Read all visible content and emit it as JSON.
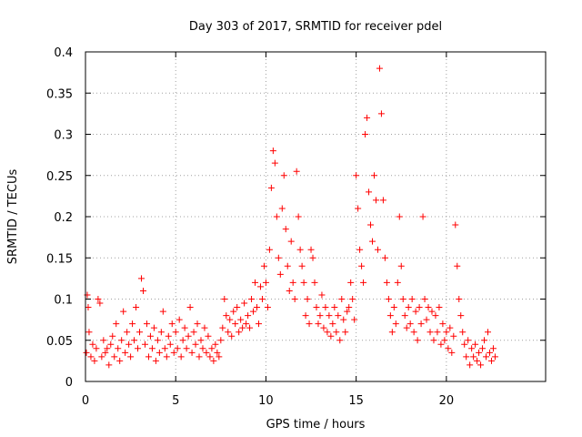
{
  "chart_data": {
    "type": "scatter",
    "title": "Day 303 of 2017, SRMTID for receiver pdel",
    "xlabel": "GPS time / hours",
    "ylabel": "SRMTID / TECUs",
    "xlim": [
      0,
      25.5
    ],
    "ylim": [
      0,
      0.4
    ],
    "x_ticks": [
      0,
      5,
      10,
      15,
      20
    ],
    "x_tick_labels": [
      "0",
      "5",
      "10",
      "15",
      "20"
    ],
    "y_ticks": [
      0,
      0.05,
      0.1,
      0.15,
      0.2,
      0.25,
      0.3,
      0.35,
      0.4
    ],
    "y_tick_labels": [
      "0",
      "0.05",
      "0.1",
      "0.15",
      "0.2",
      "0.25",
      "0.3",
      "0.35",
      "0.4"
    ],
    "grid": true,
    "marker": "plus",
    "color": "#ff0000",
    "series": [
      {
        "name": "SRMTID",
        "points": [
          [
            0.05,
            0.035
          ],
          [
            0.1,
            0.105
          ],
          [
            0.15,
            0.09
          ],
          [
            0.2,
            0.06
          ],
          [
            0.3,
            0.03
          ],
          [
            0.4,
            0.045
          ],
          [
            0.5,
            0.025
          ],
          [
            0.6,
            0.04
          ],
          [
            0.7,
            0.1
          ],
          [
            0.8,
            0.095
          ],
          [
            0.9,
            0.03
          ],
          [
            1.0,
            0.05
          ],
          [
            1.1,
            0.035
          ],
          [
            1.2,
            0.04
          ],
          [
            1.3,
            0.02
          ],
          [
            1.4,
            0.045
          ],
          [
            1.5,
            0.055
          ],
          [
            1.6,
            0.03
          ],
          [
            1.7,
            0.07
          ],
          [
            1.8,
            0.04
          ],
          [
            1.9,
            0.025
          ],
          [
            2.0,
            0.05
          ],
          [
            2.1,
            0.085
          ],
          [
            2.2,
            0.035
          ],
          [
            2.3,
            0.06
          ],
          [
            2.4,
            0.045
          ],
          [
            2.5,
            0.03
          ],
          [
            2.6,
            0.07
          ],
          [
            2.7,
            0.05
          ],
          [
            2.8,
            0.09
          ],
          [
            2.9,
            0.04
          ],
          [
            3.0,
            0.06
          ],
          [
            3.1,
            0.125
          ],
          [
            3.2,
            0.11
          ],
          [
            3.3,
            0.045
          ],
          [
            3.4,
            0.07
          ],
          [
            3.5,
            0.03
          ],
          [
            3.6,
            0.055
          ],
          [
            3.7,
            0.04
          ],
          [
            3.8,
            0.065
          ],
          [
            3.9,
            0.025
          ],
          [
            4.0,
            0.05
          ],
          [
            4.1,
            0.035
          ],
          [
            4.2,
            0.06
          ],
          [
            4.3,
            0.085
          ],
          [
            4.4,
            0.04
          ],
          [
            4.5,
            0.03
          ],
          [
            4.6,
            0.055
          ],
          [
            4.7,
            0.045
          ],
          [
            4.8,
            0.07
          ],
          [
            4.9,
            0.035
          ],
          [
            5.0,
            0.06
          ],
          [
            5.1,
            0.04
          ],
          [
            5.2,
            0.075
          ],
          [
            5.3,
            0.03
          ],
          [
            5.4,
            0.05
          ],
          [
            5.5,
            0.065
          ],
          [
            5.6,
            0.04
          ],
          [
            5.7,
            0.055
          ],
          [
            5.8,
            0.09
          ],
          [
            5.9,
            0.035
          ],
          [
            6.0,
            0.06
          ],
          [
            6.1,
            0.045
          ],
          [
            6.2,
            0.07
          ],
          [
            6.3,
            0.03
          ],
          [
            6.4,
            0.05
          ],
          [
            6.5,
            0.04
          ],
          [
            6.6,
            0.065
          ],
          [
            6.7,
            0.035
          ],
          [
            6.8,
            0.055
          ],
          [
            6.9,
            0.03
          ],
          [
            7.0,
            0.04
          ],
          [
            7.1,
            0.025
          ],
          [
            7.2,
            0.045
          ],
          [
            7.3,
            0.035
          ],
          [
            7.4,
            0.03
          ],
          [
            7.5,
            0.05
          ],
          [
            7.6,
            0.065
          ],
          [
            7.7,
            0.1
          ],
          [
            7.8,
            0.08
          ],
          [
            7.9,
            0.06
          ],
          [
            8.0,
            0.075
          ],
          [
            8.1,
            0.055
          ],
          [
            8.2,
            0.085
          ],
          [
            8.3,
            0.07
          ],
          [
            8.4,
            0.09
          ],
          [
            8.5,
            0.06
          ],
          [
            8.6,
            0.075
          ],
          [
            8.7,
            0.065
          ],
          [
            8.8,
            0.095
          ],
          [
            8.9,
            0.07
          ],
          [
            9.0,
            0.08
          ],
          [
            9.1,
            0.065
          ],
          [
            9.2,
            0.1
          ],
          [
            9.3,
            0.085
          ],
          [
            9.4,
            0.12
          ],
          [
            9.5,
            0.09
          ],
          [
            9.6,
            0.07
          ],
          [
            9.7,
            0.115
          ],
          [
            9.8,
            0.1
          ],
          [
            9.9,
            0.14
          ],
          [
            10.0,
            0.12
          ],
          [
            10.1,
            0.09
          ],
          [
            10.2,
            0.16
          ],
          [
            10.3,
            0.235
          ],
          [
            10.4,
            0.28
          ],
          [
            10.5,
            0.265
          ],
          [
            10.6,
            0.2
          ],
          [
            10.7,
            0.15
          ],
          [
            10.8,
            0.13
          ],
          [
            10.9,
            0.21
          ],
          [
            11.0,
            0.25
          ],
          [
            11.1,
            0.185
          ],
          [
            11.2,
            0.14
          ],
          [
            11.3,
            0.11
          ],
          [
            11.4,
            0.17
          ],
          [
            11.5,
            0.12
          ],
          [
            11.6,
            0.1
          ],
          [
            11.7,
            0.255
          ],
          [
            11.8,
            0.2
          ],
          [
            11.9,
            0.16
          ],
          [
            12.0,
            0.14
          ],
          [
            12.1,
            0.12
          ],
          [
            12.2,
            0.08
          ],
          [
            12.3,
            0.1
          ],
          [
            12.4,
            0.07
          ],
          [
            12.5,
            0.16
          ],
          [
            12.6,
            0.15
          ],
          [
            12.7,
            0.12
          ],
          [
            12.8,
            0.09
          ],
          [
            12.9,
            0.07
          ],
          [
            13.0,
            0.08
          ],
          [
            13.1,
            0.105
          ],
          [
            13.2,
            0.065
          ],
          [
            13.3,
            0.09
          ],
          [
            13.4,
            0.06
          ],
          [
            13.5,
            0.08
          ],
          [
            13.6,
            0.055
          ],
          [
            13.7,
            0.07
          ],
          [
            13.8,
            0.09
          ],
          [
            13.9,
            0.06
          ],
          [
            14.0,
            0.08
          ],
          [
            14.1,
            0.05
          ],
          [
            14.2,
            0.1
          ],
          [
            14.3,
            0.075
          ],
          [
            14.4,
            0.06
          ],
          [
            14.5,
            0.085
          ],
          [
            14.6,
            0.09
          ],
          [
            14.7,
            0.12
          ],
          [
            14.8,
            0.1
          ],
          [
            14.9,
            0.075
          ],
          [
            15.0,
            0.25
          ],
          [
            15.1,
            0.21
          ],
          [
            15.2,
            0.16
          ],
          [
            15.3,
            0.14
          ],
          [
            15.4,
            0.12
          ],
          [
            15.5,
            0.3
          ],
          [
            15.6,
            0.32
          ],
          [
            15.7,
            0.23
          ],
          [
            15.8,
            0.19
          ],
          [
            15.9,
            0.17
          ],
          [
            16.0,
            0.25
          ],
          [
            16.1,
            0.22
          ],
          [
            16.2,
            0.16
          ],
          [
            16.3,
            0.38
          ],
          [
            16.4,
            0.325
          ],
          [
            16.5,
            0.22
          ],
          [
            16.6,
            0.15
          ],
          [
            16.7,
            0.12
          ],
          [
            16.8,
            0.1
          ],
          [
            16.9,
            0.08
          ],
          [
            17.0,
            0.06
          ],
          [
            17.1,
            0.09
          ],
          [
            17.2,
            0.07
          ],
          [
            17.3,
            0.12
          ],
          [
            17.4,
            0.2
          ],
          [
            17.5,
            0.14
          ],
          [
            17.6,
            0.1
          ],
          [
            17.7,
            0.08
          ],
          [
            17.8,
            0.065
          ],
          [
            17.9,
            0.09
          ],
          [
            18.0,
            0.07
          ],
          [
            18.1,
            0.1
          ],
          [
            18.2,
            0.06
          ],
          [
            18.3,
            0.085
          ],
          [
            18.4,
            0.05
          ],
          [
            18.5,
            0.09
          ],
          [
            18.6,
            0.07
          ],
          [
            18.7,
            0.2
          ],
          [
            18.8,
            0.1
          ],
          [
            18.9,
            0.075
          ],
          [
            19.0,
            0.09
          ],
          [
            19.1,
            0.06
          ],
          [
            19.2,
            0.085
          ],
          [
            19.3,
            0.05
          ],
          [
            19.4,
            0.08
          ],
          [
            19.5,
            0.06
          ],
          [
            19.6,
            0.09
          ],
          [
            19.7,
            0.045
          ],
          [
            19.8,
            0.07
          ],
          [
            19.9,
            0.05
          ],
          [
            20.0,
            0.06
          ],
          [
            20.1,
            0.04
          ],
          [
            20.2,
            0.065
          ],
          [
            20.3,
            0.035
          ],
          [
            20.4,
            0.055
          ],
          [
            20.5,
            0.19
          ],
          [
            20.6,
            0.14
          ],
          [
            20.7,
            0.1
          ],
          [
            20.8,
            0.08
          ],
          [
            20.9,
            0.06
          ],
          [
            21.0,
            0.045
          ],
          [
            21.1,
            0.03
          ],
          [
            21.2,
            0.05
          ],
          [
            21.3,
            0.02
          ],
          [
            21.4,
            0.04
          ],
          [
            21.5,
            0.03
          ],
          [
            21.6,
            0.045
          ],
          [
            21.7,
            0.025
          ],
          [
            21.8,
            0.035
          ],
          [
            21.9,
            0.02
          ],
          [
            22.0,
            0.04
          ],
          [
            22.1,
            0.05
          ],
          [
            22.2,
            0.03
          ],
          [
            22.3,
            0.06
          ],
          [
            22.4,
            0.035
          ],
          [
            22.5,
            0.025
          ],
          [
            22.6,
            0.04
          ],
          [
            22.7,
            0.03
          ]
        ]
      }
    ]
  }
}
